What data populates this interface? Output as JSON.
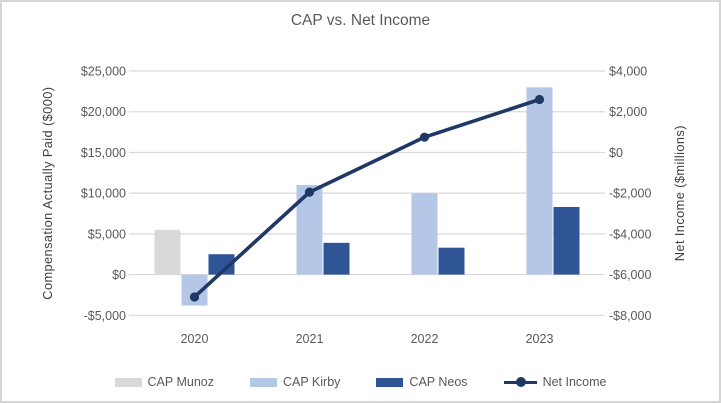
{
  "title": "CAP vs. Net Income",
  "chart_data": {
    "type": "combo-bar-line",
    "title": "CAP vs. Net Income",
    "categories": [
      "2020",
      "2021",
      "2022",
      "2023"
    ],
    "bar_series": [
      {
        "name": "CAP Munoz",
        "color": "#d9d9d9",
        "axis": "left",
        "values": [
          5500,
          null,
          null,
          null
        ]
      },
      {
        "name": "CAP Kirby",
        "color": "#b4c7e7",
        "axis": "left",
        "values": [
          -3800,
          11000,
          10000,
          23000
        ]
      },
      {
        "name": "CAP Neos",
        "color": "#2f5597",
        "axis": "left",
        "values": [
          2500,
          3900,
          3300,
          8300
        ]
      }
    ],
    "line_series": [
      {
        "name": "Net Income",
        "color": "#203864",
        "axis": "right",
        "values": [
          -7100,
          -1950,
          750,
          2600
        ]
      }
    ],
    "left_axis": {
      "title": "Compensation Actually Paid ($000)",
      "min": -5000,
      "max": 25000,
      "ticks": [
        {
          "v": 25000,
          "label": "$25,000"
        },
        {
          "v": 20000,
          "label": "$20,000"
        },
        {
          "v": 15000,
          "label": "$15,000"
        },
        {
          "v": 10000,
          "label": "$10,000"
        },
        {
          "v": 5000,
          "label": "$5,000"
        },
        {
          "v": 0,
          "label": "$0"
        },
        {
          "v": -5000,
          "label": "-$5,000"
        }
      ]
    },
    "right_axis": {
      "title": "Net Income ($millions)",
      "min": -8000,
      "max": 4000,
      "ticks": [
        {
          "v": 4000,
          "label": "$4,000"
        },
        {
          "v": 2000,
          "label": "$2,000"
        },
        {
          "v": 0,
          "label": "$0"
        },
        {
          "v": -2000,
          "label": "-$2,000"
        },
        {
          "v": -4000,
          "label": "-$4,000"
        },
        {
          "v": -6000,
          "label": "-$6,000"
        },
        {
          "v": -8000,
          "label": "-$8,000"
        }
      ]
    },
    "grid": true,
    "legend_position": "bottom"
  },
  "colors": {
    "grid": "#d9d9d9",
    "tick_label": "#595959",
    "axis_title": "#404040",
    "title": "#595959",
    "frame_border": "#d7d5d3"
  }
}
